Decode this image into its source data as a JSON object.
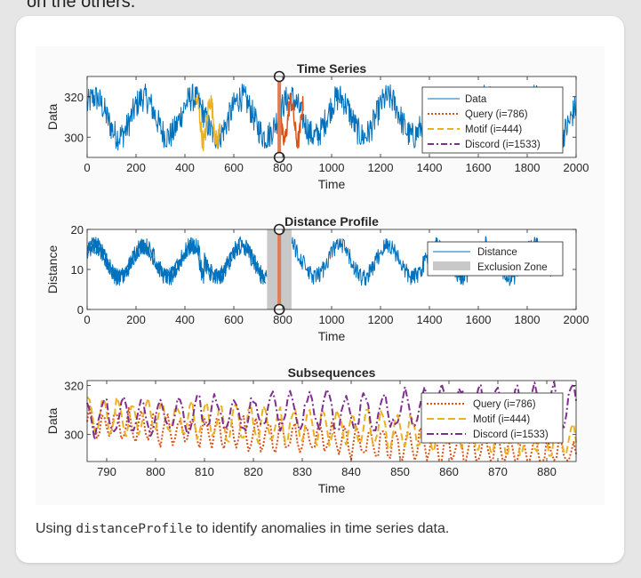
{
  "page": {
    "top_text": "on the others.",
    "caption_prefix": "Using ",
    "caption_code": "distanceProfile",
    "caption_suffix": " to identify anomalies in time series data."
  },
  "colors": {
    "data": "#0072bd",
    "query": "#d95319",
    "motif": "#edb120",
    "discord": "#7e2f8e",
    "exclusion": "#c8c8c8",
    "marker_line": "#e07b55"
  },
  "chart_data": [
    {
      "type": "line",
      "title": "Time Series",
      "xlabel": "Time",
      "ylabel": "Data",
      "xlim": [
        0,
        2000
      ],
      "ylim": [
        290,
        330
      ],
      "xticks": [
        0,
        200,
        400,
        600,
        800,
        1000,
        1200,
        1400,
        1600,
        1800,
        2000
      ],
      "yticks": [
        300,
        320
      ],
      "legend_position": "top-right",
      "series": [
        {
          "name": "Data",
          "style": "solid",
          "color": "#0072bd",
          "approx_mean": 310,
          "approx_amplitude": 12,
          "approx_period": 200
        },
        {
          "name": "Query (i=786)",
          "style": "dotted",
          "color": "#d95319",
          "x_range": [
            786,
            886
          ]
        },
        {
          "name": "Motif (i=444)",
          "style": "dashed",
          "color": "#edb120",
          "x_range": [
            444,
            544
          ]
        },
        {
          "name": "Discord (i=1533)",
          "style": "dashdot",
          "color": "#7e2f8e",
          "x_range": [
            1533,
            1633
          ]
        }
      ],
      "annotation": {
        "type": "vertical-marker",
        "x": 786
      }
    },
    {
      "type": "line",
      "title": "Distance Profile",
      "xlabel": "Time",
      "ylabel": "Distance",
      "xlim": [
        0,
        2000
      ],
      "ylim": [
        0,
        20
      ],
      "xticks": [
        0,
        200,
        400,
        600,
        800,
        1000,
        1200,
        1400,
        1600,
        1800,
        2000
      ],
      "yticks": [
        0,
        10,
        20
      ],
      "legend_position": "top-right",
      "series": [
        {
          "name": "Distance",
          "style": "solid",
          "color": "#0072bd",
          "approx_mean": 12,
          "approx_amplitude": 4,
          "approx_period": 200
        }
      ],
      "exclusion_zone": {
        "name": "Exclusion Zone",
        "x_range": [
          736,
          836
        ]
      },
      "annotation": {
        "type": "vertical-marker",
        "x": 786
      }
    },
    {
      "type": "line",
      "title": "Subsequences",
      "xlabel": "Time",
      "ylabel": "Data",
      "xlim": [
        786,
        886
      ],
      "ylim": [
        289,
        322
      ],
      "xticks": [
        790,
        800,
        810,
        820,
        830,
        840,
        850,
        860,
        870,
        880
      ],
      "yticks": [
        300,
        320
      ],
      "legend_position": "top-right",
      "series": [
        {
          "name": "Query (i=786)",
          "style": "dotted",
          "color": "#d95319"
        },
        {
          "name": "Motif (i=444)",
          "style": "dashed",
          "color": "#edb120"
        },
        {
          "name": "Discord (i=1533)",
          "style": "dashdot",
          "color": "#7e2f8e"
        }
      ]
    }
  ]
}
